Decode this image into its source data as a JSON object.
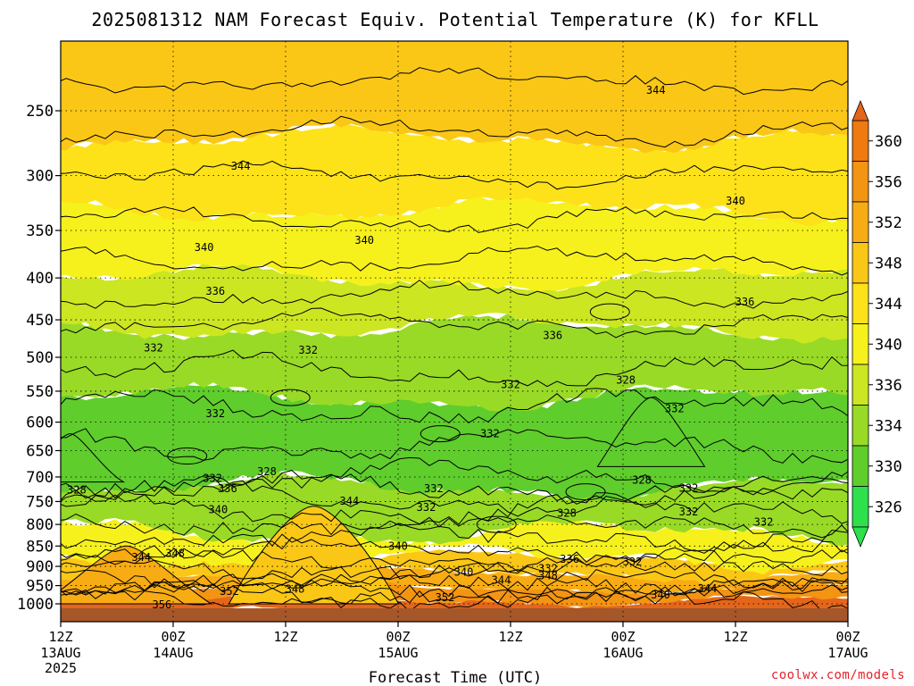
{
  "chart_data": {
    "type": "heatmap",
    "title": "2025081312 NAM Forecast Equiv. Potential Temperature (K) for KFLL",
    "xlabel": "Forecast Time (UTC)",
    "ylabel": "",
    "x_ticks": [
      {
        "hours": 0,
        "hour": "12Z",
        "date": "13AUG",
        "year": "2025"
      },
      {
        "hours": 12,
        "hour": "00Z",
        "date": "14AUG"
      },
      {
        "hours": 24,
        "hour": "12Z",
        "date": ""
      },
      {
        "hours": 36,
        "hour": "00Z",
        "date": "15AUG"
      },
      {
        "hours": 48,
        "hour": "12Z",
        "date": ""
      },
      {
        "hours": 60,
        "hour": "00Z",
        "date": "16AUG"
      },
      {
        "hours": 72,
        "hour": "12Z",
        "date": ""
      },
      {
        "hours": 84,
        "hour": "00Z",
        "date": "17AUG"
      }
    ],
    "xlim_hours": [
      0,
      84
    ],
    "y_axis": {
      "type": "log-pressure",
      "units": "hPa",
      "ticks": [
        250,
        300,
        350,
        400,
        450,
        500,
        550,
        600,
        650,
        700,
        750,
        800,
        850,
        900,
        950,
        1000
      ],
      "range": [
        200,
        1030
      ],
      "inverted": true
    },
    "grid": "dotted at each tick",
    "colorbar": {
      "placement": "right",
      "labels": [
        360,
        356,
        352,
        348,
        344,
        340,
        336,
        334,
        330,
        326
      ],
      "bins": [
        {
          "lo": 356,
          "hi": 360,
          "color": "#ee7a10"
        },
        {
          "lo": 352,
          "hi": 356,
          "color": "#f39413"
        },
        {
          "lo": 348,
          "hi": 352,
          "color": "#f8ac14"
        },
        {
          "lo": 344,
          "hi": 348,
          "color": "#fbc716"
        },
        {
          "lo": 340,
          "hi": 344,
          "color": "#fde21a"
        },
        {
          "lo": 336,
          "hi": 340,
          "color": "#f6f11c"
        },
        {
          "lo": 334,
          "hi": 336,
          "color": "#cce622"
        },
        {
          "lo": 330,
          "hi": 334,
          "color": "#99da26"
        },
        {
          "lo": 326,
          "hi": 330,
          "color": "#5fcd2c"
        },
        {
          "lo": 0,
          "hi": 326,
          "color": "#2ee04c"
        }
      ],
      "below_color": "#2ee04c",
      "above_color": "#e4661a"
    },
    "layers": [
      {
        "p_top": 1030,
        "p_bot": 990,
        "theta": 360
      },
      {
        "p_top": 990,
        "p_bot": 955,
        "theta": 354
      },
      {
        "p_top": 955,
        "p_bot": 920,
        "theta": 349
      },
      {
        "p_top": 920,
        "p_bot": 880,
        "theta": 345
      },
      {
        "p_top": 880,
        "p_bot": 820,
        "theta": 338
      },
      {
        "p_top": 820,
        "p_bot": 720,
        "theta": 332
      },
      {
        "p_top": 720,
        "p_bot": 560,
        "theta": 329
      },
      {
        "p_top": 560,
        "p_bot": 460,
        "theta": 332
      },
      {
        "p_top": 460,
        "p_bot": 400,
        "theta": 335
      },
      {
        "p_top": 400,
        "p_bot": 330,
        "theta": 339
      },
      {
        "p_top": 330,
        "p_bot": 270,
        "theta": 342
      },
      {
        "p_top": 270,
        "p_bot": 200,
        "theta": 346
      }
    ],
    "features": [
      {
        "name": "warm plume",
        "hours_center": 27,
        "p_top": 760,
        "p_bot": 1000,
        "theta": 344
      },
      {
        "name": "warm wedge",
        "hours_center": 7,
        "p_top": 850,
        "p_bot": 1000,
        "theta": 348
      },
      {
        "name": "dry pocket",
        "hours_center": 63,
        "p_top": 560,
        "p_bot": 680,
        "theta": 326
      },
      {
        "name": "dry pocket",
        "hours_center": 1,
        "p_top": 620,
        "p_bot": 710,
        "theta": 326
      }
    ],
    "contour_levels": [
      324,
      328,
      332,
      336,
      340,
      344,
      348,
      352,
      356
    ],
    "contour_labels": [
      {
        "text": "344",
        "hours": 63.5,
        "p": 236
      },
      {
        "text": "344",
        "hours": 19.2,
        "p": 292
      },
      {
        "text": "340",
        "hours": 15.3,
        "p": 367
      },
      {
        "text": "340",
        "hours": 32.4,
        "p": 360
      },
      {
        "text": "340",
        "hours": 72.0,
        "p": 322
      },
      {
        "text": "336",
        "hours": 16.5,
        "p": 415
      },
      {
        "text": "336",
        "hours": 52.5,
        "p": 470
      },
      {
        "text": "336",
        "hours": 73.0,
        "p": 428
      },
      {
        "text": "332",
        "hours": 9.9,
        "p": 487
      },
      {
        "text": "332",
        "hours": 26.4,
        "p": 490
      },
      {
        "text": "332",
        "hours": 48.0,
        "p": 540
      },
      {
        "text": "332",
        "hours": 16.5,
        "p": 586
      },
      {
        "text": "332",
        "hours": 45.8,
        "p": 620
      },
      {
        "text": "332",
        "hours": 65.5,
        "p": 578
      },
      {
        "text": "328",
        "hours": 60.3,
        "p": 533
      },
      {
        "text": "332",
        "hours": 16.2,
        "p": 703
      },
      {
        "text": "328",
        "hours": 22.0,
        "p": 690
      },
      {
        "text": "336",
        "hours": 17.8,
        "p": 723
      },
      {
        "text": "328",
        "hours": 1.7,
        "p": 726
      },
      {
        "text": "344",
        "hours": 30.8,
        "p": 749
      },
      {
        "text": "340",
        "hours": 16.8,
        "p": 767
      },
      {
        "text": "332",
        "hours": 39.8,
        "p": 723
      },
      {
        "text": "332",
        "hours": 39.0,
        "p": 762
      },
      {
        "text": "328",
        "hours": 54.0,
        "p": 775
      },
      {
        "text": "328",
        "hours": 62.0,
        "p": 706
      },
      {
        "text": "332",
        "hours": 67.0,
        "p": 722
      },
      {
        "text": "332",
        "hours": 67.0,
        "p": 772
      },
      {
        "text": "332",
        "hours": 75.0,
        "p": 795
      },
      {
        "text": "344",
        "hours": 8.6,
        "p": 878
      },
      {
        "text": "348",
        "hours": 12.2,
        "p": 868
      },
      {
        "text": "340",
        "hours": 36.0,
        "p": 850
      },
      {
        "text": "336",
        "hours": 54.3,
        "p": 882
      },
      {
        "text": "332",
        "hours": 61.0,
        "p": 889
      },
      {
        "text": "332",
        "hours": 52.0,
        "p": 905
      },
      {
        "text": "340",
        "hours": 43.0,
        "p": 915
      },
      {
        "text": "344",
        "hours": 47.0,
        "p": 936
      },
      {
        "text": "348",
        "hours": 52.0,
        "p": 924
      },
      {
        "text": "352",
        "hours": 18.0,
        "p": 965
      },
      {
        "text": "348",
        "hours": 25.0,
        "p": 960
      },
      {
        "text": "352",
        "hours": 41.0,
        "p": 983
      },
      {
        "text": "340",
        "hours": 64.0,
        "p": 975
      },
      {
        "text": "344",
        "hours": 69.0,
        "p": 958
      },
      {
        "text": "356",
        "hours": 10.8,
        "p": 1003
      }
    ],
    "ground_color": "#a5572a"
  },
  "credit": "coolwx.com/models"
}
